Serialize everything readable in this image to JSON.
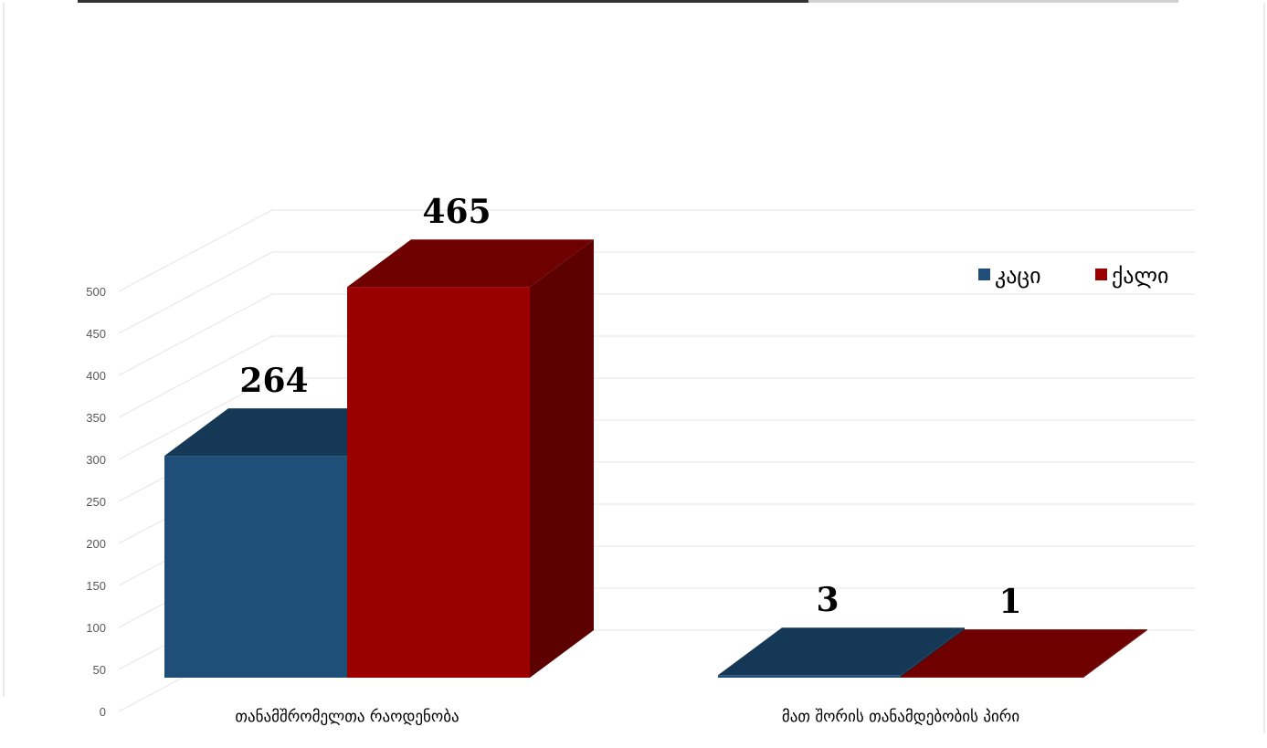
{
  "chart_data": {
    "type": "bar",
    "title": "",
    "xlabel": "",
    "ylabel": "",
    "ylim": [
      0,
      500
    ],
    "yticks": [
      0,
      50,
      100,
      150,
      200,
      250,
      300,
      350,
      400,
      450,
      500
    ],
    "categories": [
      "თანამშრომელთა რაოდენობა",
      "მათ შორის თანამდებობის პირი"
    ],
    "series": [
      {
        "name": "კაცი",
        "values": [
          264,
          3
        ],
        "color": "#1f4e79"
      },
      {
        "name": "ქალი",
        "values": [
          465,
          1
        ],
        "color": "#9a0000"
      }
    ],
    "legend_position": "top-right",
    "style": "3d-column",
    "grid": true
  }
}
